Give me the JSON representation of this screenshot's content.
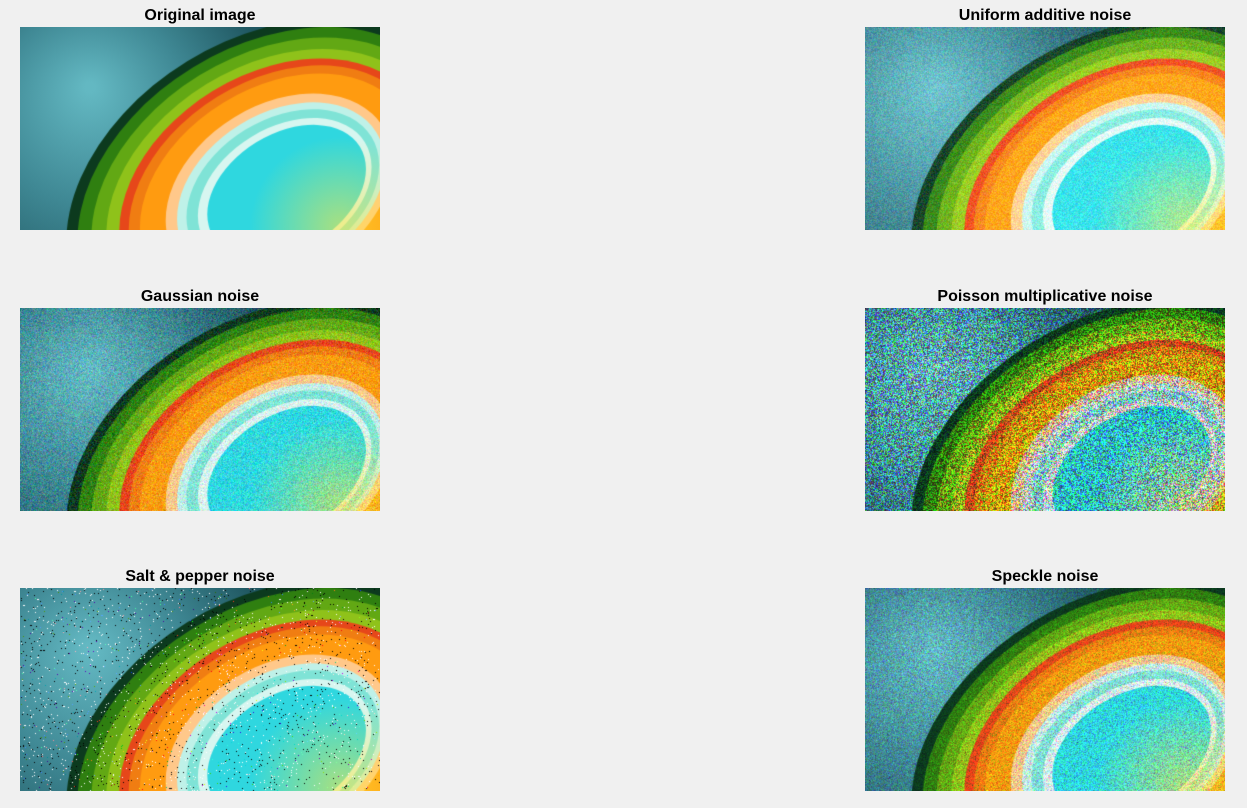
{
  "figure": {
    "panels": [
      {
        "title": "Original image",
        "noise": "none"
      },
      {
        "title": "Uniform additive noise",
        "noise": "uniform"
      },
      {
        "title": "Gaussian noise",
        "noise": "gaussian"
      },
      {
        "title": "Poisson multiplicative noise",
        "noise": "poisson"
      },
      {
        "title": "Salt & pepper noise",
        "noise": "saltpepper"
      },
      {
        "title": "Speckle noise",
        "noise": "speckle"
      }
    ]
  }
}
